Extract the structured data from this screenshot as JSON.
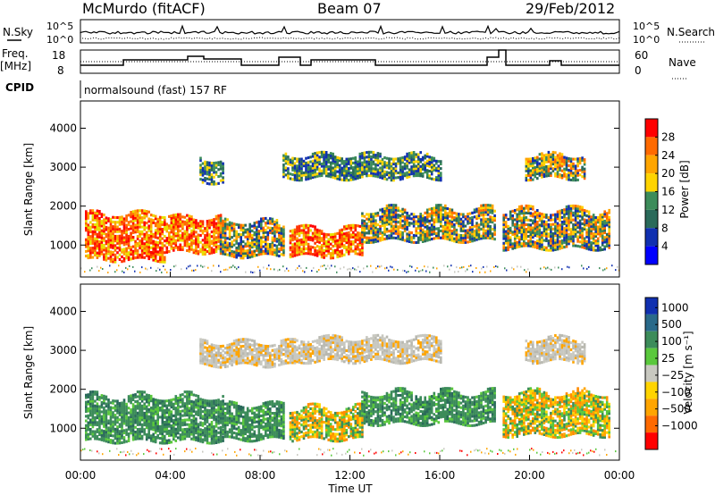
{
  "header": {
    "station": "McMurdo (fitACF)",
    "beam": "Beam 07",
    "date": "29/Feb/2012"
  },
  "noise_panel": {
    "left_label": "N.Sky",
    "right_label": "N.Search",
    "left_ticks": [
      "10^5",
      "10^0"
    ],
    "right_ticks": [
      "10^5",
      "10^0"
    ]
  },
  "freq_panel": {
    "left_label_1": "Freq.",
    "left_label_2": "[MHz]",
    "left_ticks": [
      "18",
      "8"
    ],
    "right_label": "Nave",
    "right_ticks": [
      "60",
      "0"
    ]
  },
  "cpid": {
    "label": "CPID",
    "text": "normalsound (fast) 157 RF"
  },
  "chart_data": [
    {
      "type": "heatmap",
      "name": "power",
      "ylabel": "Slant Range [km]",
      "xlabel": "",
      "x_ticks": [
        "00:00",
        "04:00",
        "08:00",
        "12:00",
        "16:00",
        "20:00",
        "00:00"
      ],
      "y_ticks": [
        1000,
        2000,
        3000,
        4000
      ],
      "ylim": [
        180,
        4700
      ],
      "xlim_hours": [
        0,
        24
      ],
      "colorbar_label": "Power [dB]",
      "colorbar_ticks": [
        "28",
        "24",
        "20",
        "16",
        "12",
        "8",
        "4"
      ],
      "colorbar_colors": [
        "#ff0000",
        "#ff6a00",
        "#ffa500",
        "#ffd400",
        "#3c8c5a",
        "#2a6a5a",
        "#1030b0",
        "#0000ff"
      ],
      "regions": [
        {
          "t0": 0.2,
          "t1": 3.8,
          "r0": 600,
          "r1": 1800,
          "level": "high"
        },
        {
          "t0": 3.8,
          "t1": 6.2,
          "r0": 800,
          "r1": 1700,
          "level": "high"
        },
        {
          "t0": 6.2,
          "t1": 9.0,
          "r0": 700,
          "r1": 1600,
          "level": "mid"
        },
        {
          "t0": 9.3,
          "t1": 12.5,
          "r0": 700,
          "r1": 1400,
          "level": "high"
        },
        {
          "t0": 12.5,
          "t1": 18.5,
          "r0": 1100,
          "r1": 1900,
          "level": "mid"
        },
        {
          "t0": 18.8,
          "t1": 23.6,
          "r0": 900,
          "r1": 1900,
          "level": "mid"
        },
        {
          "t0": 5.3,
          "t1": 6.3,
          "r0": 2600,
          "r1": 3200,
          "level": "low"
        },
        {
          "t0": 9.0,
          "t1": 16.0,
          "r0": 2700,
          "r1": 3300,
          "level": "low"
        },
        {
          "t0": 19.8,
          "t1": 22.5,
          "r0": 2700,
          "r1": 3300,
          "level": "mid"
        }
      ]
    },
    {
      "type": "heatmap",
      "name": "velocity",
      "ylabel": "Slant Range [km]",
      "xlabel": "Time UT",
      "x_ticks": [
        "00:00",
        "04:00",
        "08:00",
        "12:00",
        "16:00",
        "20:00",
        "00:00"
      ],
      "y_ticks": [
        1000,
        2000,
        3000,
        4000
      ],
      "ylim": [
        180,
        4700
      ],
      "xlim_hours": [
        0,
        24
      ],
      "colorbar_label": "Velocity [m s⁻¹]",
      "colorbar_ticks": [
        "1000",
        "500",
        "100",
        "25",
        "−25",
        "−100",
        "−500",
        "−1000"
      ],
      "colorbar_colors": [
        "#1030b0",
        "#2a6a8a",
        "#3c8c5a",
        "#5ac83c",
        "#c8c8c0",
        "#ffd400",
        "#ffa500",
        "#ff6a00",
        "#ff0000"
      ],
      "regions": [
        {
          "t0": 0.2,
          "t1": 6.3,
          "r0": 650,
          "r1": 1800,
          "level": "pos"
        },
        {
          "t0": 6.3,
          "t1": 9.0,
          "r0": 700,
          "r1": 1600,
          "level": "pos"
        },
        {
          "t0": 9.3,
          "t1": 12.5,
          "r0": 700,
          "r1": 1500,
          "level": "neg"
        },
        {
          "t0": 12.5,
          "t1": 18.5,
          "r0": 1100,
          "r1": 1900,
          "level": "pos"
        },
        {
          "t0": 18.8,
          "t1": 23.6,
          "r0": 800,
          "r1": 1900,
          "level": "neg"
        },
        {
          "t0": 5.3,
          "t1": 9.5,
          "r0": 2600,
          "r1": 3200,
          "level": "zero"
        },
        {
          "t0": 9.5,
          "t1": 16.0,
          "r0": 2700,
          "r1": 3300,
          "level": "zero"
        },
        {
          "t0": 19.8,
          "t1": 22.5,
          "r0": 2700,
          "r1": 3300,
          "level": "zero"
        }
      ]
    }
  ]
}
